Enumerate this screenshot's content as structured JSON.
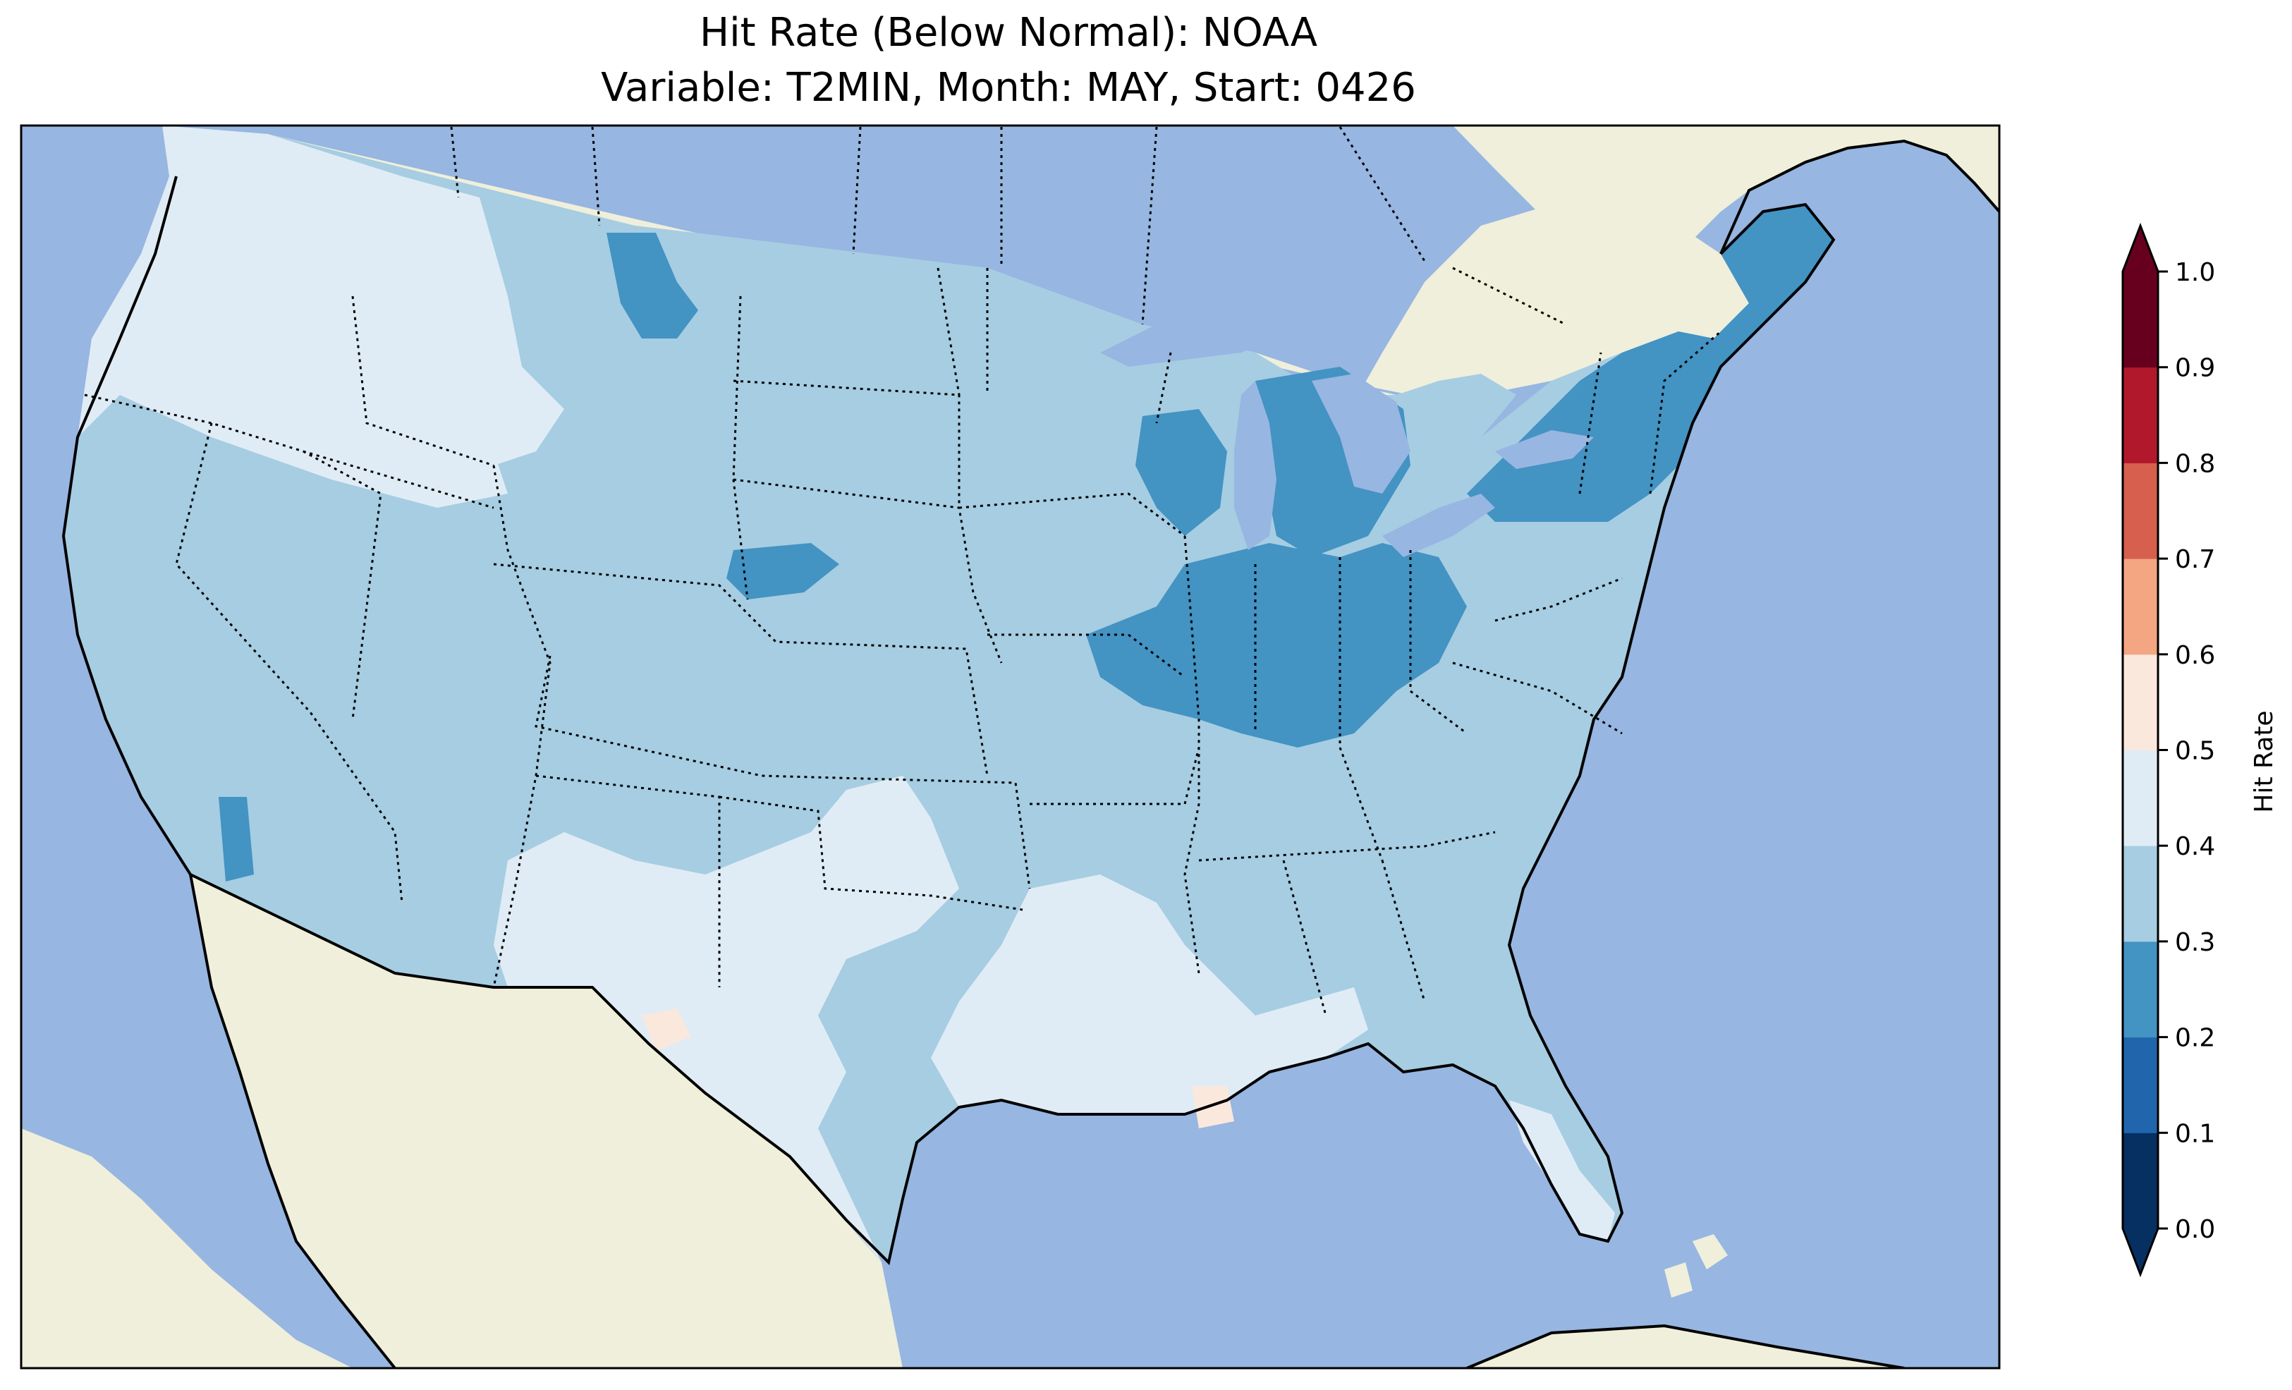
{
  "title": {
    "line1": "Hit Rate (Below Normal): NOAA",
    "line2": "Variable: T2MIN, Month: MAY, Start: 0426"
  },
  "colors": {
    "ocean": "#97b6e1",
    "land": "#efefdb",
    "lake": "#97b6e1"
  },
  "colorbar": {
    "label": "Hit Rate",
    "ticks": [
      "0.0",
      "0.1",
      "0.2",
      "0.3",
      "0.4",
      "0.5",
      "0.6",
      "0.7",
      "0.8",
      "0.9",
      "1.0"
    ],
    "bins": [
      {
        "range": [
          0.0,
          0.1
        ],
        "color": "#053061"
      },
      {
        "range": [
          0.1,
          0.2
        ],
        "color": "#2166ac"
      },
      {
        "range": [
          0.2,
          0.3
        ],
        "color": "#4393c3"
      },
      {
        "range": [
          0.3,
          0.4
        ],
        "color": "#a6cde2"
      },
      {
        "range": [
          0.4,
          0.5
        ],
        "color": "#e0ecf5"
      },
      {
        "range": [
          0.5,
          0.6
        ],
        "color": "#fae8dd"
      },
      {
        "range": [
          0.6,
          0.7
        ],
        "color": "#f4a582"
      },
      {
        "range": [
          0.7,
          0.8
        ],
        "color": "#d6604d"
      },
      {
        "range": [
          0.8,
          0.9
        ],
        "color": "#b2182b"
      },
      {
        "range": [
          0.9,
          1.0
        ],
        "color": "#67001f"
      }
    ],
    "under_color": "#053061",
    "over_color": "#67001f"
  },
  "regions": [
    {
      "name": "pacific-northwest-west",
      "value": 0.45
    },
    {
      "name": "snake-river-plain",
      "value": 0.45
    },
    {
      "name": "great-basin-west",
      "value": 0.35
    },
    {
      "name": "montana-north",
      "value": 0.35
    },
    {
      "name": "montana-core",
      "value": 0.25
    },
    {
      "name": "northern-plains",
      "value": 0.35
    },
    {
      "name": "nebraska-spot",
      "value": 0.25
    },
    {
      "name": "great-lakes-michigan",
      "value": 0.25
    },
    {
      "name": "ohio-valley",
      "value": 0.25
    },
    {
      "name": "new-york-new-england",
      "value": 0.25
    },
    {
      "name": "wisconsin-spot",
      "value": 0.25
    },
    {
      "name": "southern-california",
      "value": 0.25
    },
    {
      "name": "new-mexico-texas",
      "value": 0.45
    },
    {
      "name": "south-central",
      "value": 0.45
    },
    {
      "name": "florida-peninsula",
      "value": 0.45
    },
    {
      "name": "west-texas-spot",
      "value": 0.55
    },
    {
      "name": "louisiana-coast-spot",
      "value": 0.55
    }
  ]
}
